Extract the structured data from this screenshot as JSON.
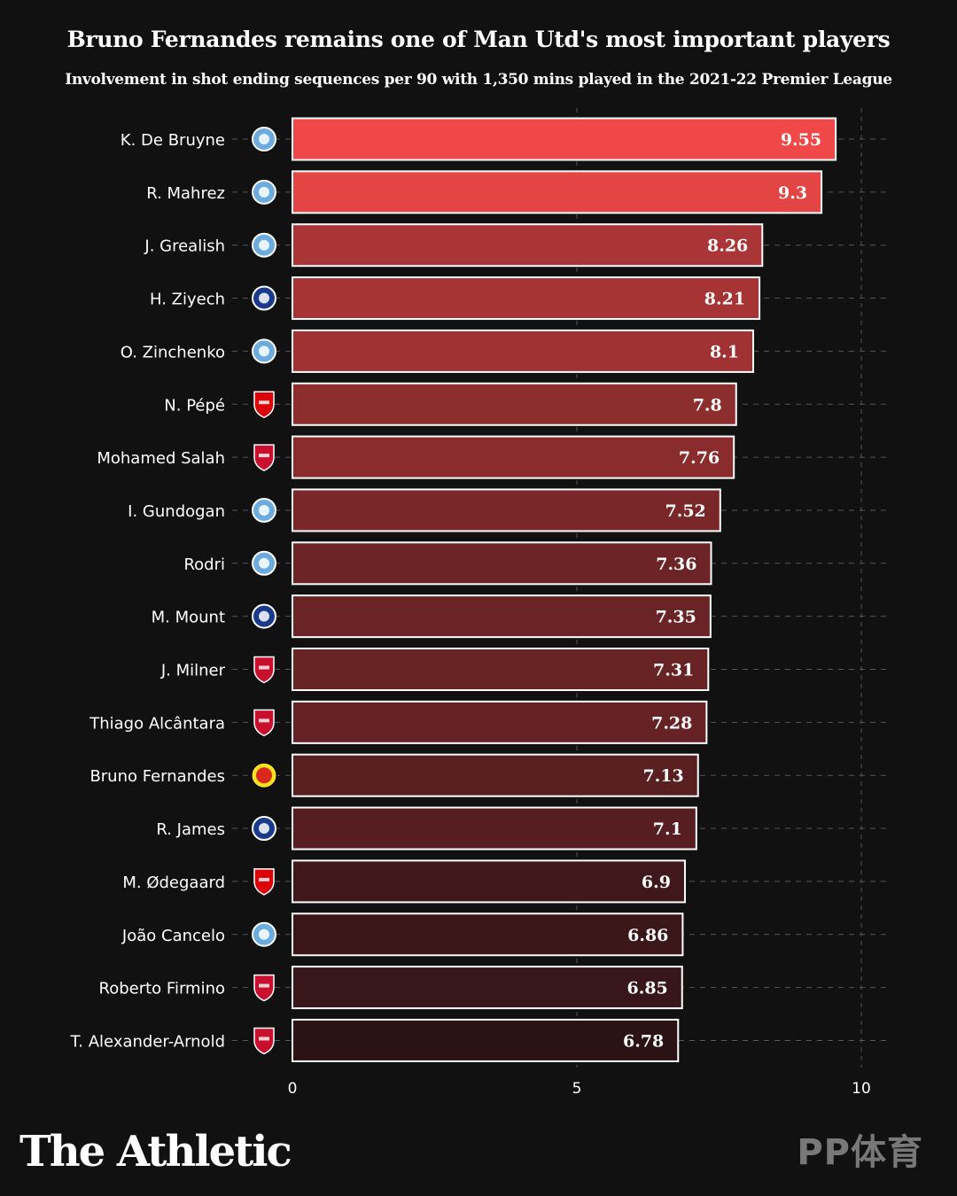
{
  "header": {
    "title": "Bruno Fernandes remains one of Man Utd's most important players",
    "subtitle": "Involvement in shot ending sequences per 90 with 1,350 mins played in the 2021-22 Premier League"
  },
  "footer": {
    "brand": "The Athletic",
    "watermark": "PP体育"
  },
  "colors": {
    "background": "#111111",
    "bar_high": "#f04848",
    "bar_low": "#2a1215",
    "bar_stroke": "#ffffff",
    "grid": "#555555"
  },
  "club_badges": {
    "man-city": {
      "icon": "man-city-crest-icon",
      "color": "#6cabdd"
    },
    "chelsea": {
      "icon": "chelsea-crest-icon",
      "color": "#1a3a8c"
    },
    "arsenal": {
      "icon": "arsenal-crest-icon",
      "color": "#db0007"
    },
    "liverpool": {
      "icon": "liverpool-crest-icon",
      "color": "#c8102e"
    },
    "man-utd": {
      "icon": "man-utd-crest-icon",
      "color": "#da291c"
    }
  },
  "chart_data": {
    "type": "bar",
    "orientation": "horizontal",
    "categories": [
      "K. De Bruyne",
      "R. Mahrez",
      "J. Grealish",
      "H. Ziyech",
      "O. Zinchenko",
      "N. Pépé",
      "Mohamed Salah",
      "I. Gundogan",
      "Rodri",
      "M. Mount",
      "J. Milner",
      "Thiago Alcântara",
      "Bruno Fernandes",
      "R. James",
      "M. Ødegaard",
      "João Cancelo",
      "Roberto Firmino",
      "T. Alexander-Arnold"
    ],
    "values": [
      9.55,
      9.3,
      8.26,
      8.21,
      8.1,
      7.8,
      7.76,
      7.52,
      7.36,
      7.35,
      7.31,
      7.28,
      7.13,
      7.1,
      6.9,
      6.86,
      6.85,
      6.78
    ],
    "value_labels": [
      "9.55",
      "9.3",
      "8.26",
      "8.21",
      "8.1",
      "7.8",
      "7.76",
      "7.52",
      "7.36",
      "7.35",
      "7.31",
      "7.28",
      "7.13",
      "7.1",
      "6.9",
      "6.86",
      "6.85",
      "6.78"
    ],
    "clubs": [
      "man-city",
      "man-city",
      "man-city",
      "chelsea",
      "man-city",
      "arsenal",
      "liverpool",
      "man-city",
      "man-city",
      "chelsea",
      "liverpool",
      "liverpool",
      "man-utd",
      "chelsea",
      "arsenal",
      "man-city",
      "liverpool",
      "liverpool"
    ],
    "xlim": [
      0,
      10.5
    ],
    "xticks": [
      0,
      5,
      10
    ],
    "xtick_labels": [
      "0",
      "5",
      "10"
    ],
    "grid": true,
    "title": "Bruno Fernandes remains one of Man Utd's most important players",
    "subtitle": "Involvement in shot ending sequences per 90 with 1,350 mins played in the 2021-22 Premier League",
    "xlabel": "",
    "ylabel": ""
  }
}
